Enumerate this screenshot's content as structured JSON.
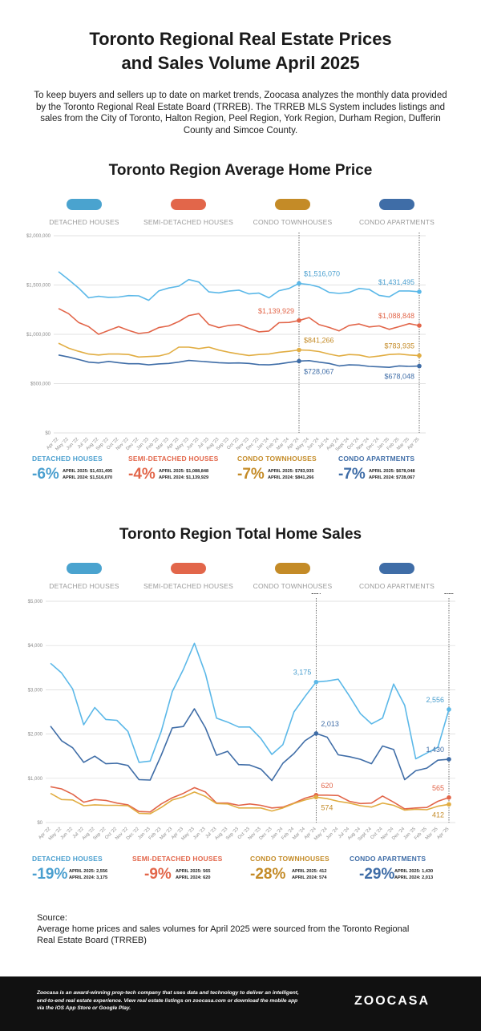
{
  "header": {
    "title_line1": "Toronto Regional Real Estate Prices",
    "title_line2": "and Sales Volume April 2025",
    "intro": "To keep buyers and sellers up to date on market trends, Zoocasa analyzes the monthly data provided by the Toronto Regional Real Estate Board (TRREB). The TRREB MLS System includes listings and sales from the City of Toronto, Halton Region, Peel Region, York Region, Durham Region, Dufferin County and Simcoe County."
  },
  "colors": {
    "detached": "#5bb8e8",
    "semi": "#e2664a",
    "condo_town": "#e1ad42",
    "condo_apt": "#3f6da7",
    "detached_dark": "#4a9fcf",
    "condo_town_dark": "#c48b27",
    "grid": "#d8d8d8",
    "axis_text": "#8c8c8c"
  },
  "legend": [
    {
      "label": "DETACHED HOUSES",
      "color": "#4aa3cf"
    },
    {
      "label": "SEMI-DETACHED HOUSES",
      "color": "#e2664a"
    },
    {
      "label": "CONDO TOWNHOUSES",
      "color": "#c48b27"
    },
    {
      "label": "CONDO APARTMENTS",
      "color": "#3f6da7"
    }
  ],
  "chart_data": [
    {
      "type": "line",
      "title": "Toronto Region Average Home Price",
      "ylim": [
        0,
        2000000
      ],
      "y_ticks": [
        0,
        500000,
        1000000,
        1500000,
        2000000
      ],
      "y_tick_labels": [
        "$0",
        "$500,000",
        "$1,000,000",
        "$1,500,000",
        "$2,000,000"
      ],
      "x": [
        "Apr '22",
        "May '22",
        "Jun '22",
        "Jul '22",
        "Aug '22",
        "Sep '22",
        "Oct '22",
        "Nov '22",
        "Dec '22",
        "Jan '23",
        "Feb '23",
        "Mar '23",
        "Apr '23",
        "May '23",
        "Jun '23",
        "Jul '23",
        "Aug '23",
        "Sep '23",
        "Oct '23",
        "Nov '23",
        "Dec '23",
        "Jan '24",
        "Feb '24",
        "Mar '24",
        "Apr '24",
        "May '24",
        "Jun '24",
        "Jul '24",
        "Aug '24",
        "Sept '24",
        "Oct '24",
        "Nov '24",
        "Dec '24",
        "Jan '25",
        "Feb '25",
        "Mar '25",
        "Apr '25"
      ],
      "markers": [
        {
          "index": 24,
          "label_line1": "APRIL",
          "label_line2": "2024"
        },
        {
          "index": 36,
          "label_line1": "APRIL",
          "label_line2": "2025"
        }
      ],
      "series": [
        {
          "name": "DETACHED HOUSES",
          "key": "detached",
          "values": [
            1635000,
            1555000,
            1470000,
            1370000,
            1385000,
            1375000,
            1378000,
            1393000,
            1390000,
            1345000,
            1440000,
            1470000,
            1488000,
            1555000,
            1530000,
            1430000,
            1420000,
            1438000,
            1448000,
            1410000,
            1418000,
            1370000,
            1442000,
            1465000,
            1516070,
            1505000,
            1480000,
            1425000,
            1415000,
            1425000,
            1465000,
            1455000,
            1395000,
            1380000,
            1440000,
            1440000,
            1431495
          ],
          "annotations": [
            {
              "index": 24,
              "text": "$1,516,070",
              "pos": "right"
            },
            {
              "index": 36,
              "text": "$1,431,495",
              "pos": "left"
            }
          ]
        },
        {
          "name": "SEMI-DETACHED HOUSES",
          "key": "semi",
          "values": [
            1262000,
            1210000,
            1120000,
            1078000,
            1000000,
            1040000,
            1078000,
            1040000,
            1008000,
            1020000,
            1068000,
            1085000,
            1130000,
            1190000,
            1210000,
            1100000,
            1068000,
            1090000,
            1098000,
            1060000,
            1025000,
            1033000,
            1118000,
            1120000,
            1139929,
            1170000,
            1098000,
            1070000,
            1035000,
            1090000,
            1105000,
            1075000,
            1085000,
            1050000,
            1078000,
            1108000,
            1088848
          ],
          "annotations": [
            {
              "index": 24,
              "text": "$1,139,929",
              "pos": "left"
            },
            {
              "index": 36,
              "text": "$1,088,848",
              "pos": "left"
            }
          ]
        },
        {
          "name": "CONDO TOWNHOUSES",
          "key": "condo_town",
          "values": [
            910000,
            860000,
            828000,
            800000,
            790000,
            800000,
            800000,
            795000,
            770000,
            775000,
            780000,
            805000,
            870000,
            870000,
            855000,
            870000,
            840000,
            818000,
            800000,
            785000,
            795000,
            800000,
            818000,
            828000,
            841266,
            838000,
            825000,
            800000,
            780000,
            795000,
            790000,
            768000,
            780000,
            795000,
            800000,
            790000,
            783935
          ],
          "annotations": [
            {
              "index": 24,
              "text": "$841,266",
              "pos": "right"
            },
            {
              "index": 36,
              "text": "$783,935",
              "pos": "left"
            }
          ]
        },
        {
          "name": "CONDO APARTMENTS",
          "key": "condo_apt",
          "values": [
            790000,
            770000,
            745000,
            718000,
            710000,
            725000,
            712000,
            702000,
            702000,
            690000,
            700000,
            705000,
            718000,
            735000,
            728000,
            720000,
            712000,
            708000,
            710000,
            705000,
            693000,
            690000,
            700000,
            715000,
            728067,
            733000,
            718000,
            705000,
            680000,
            690000,
            688000,
            675000,
            670000,
            665000,
            680000,
            675000,
            678048
          ],
          "annotations": [
            {
              "index": 24,
              "text": "$728,067",
              "pos": "below-right"
            },
            {
              "index": 36,
              "text": "$678,048",
              "pos": "below-left"
            }
          ]
        }
      ]
    },
    {
      "type": "line",
      "title": "Toronto Region Total Home Sales",
      "ylim": [
        0,
        5000
      ],
      "y_ticks": [
        0,
        1000,
        2000,
        3000,
        4000,
        5000
      ],
      "y_tick_labels": [
        "$0",
        "$1,000",
        "$2,000",
        "$3,000",
        "$4,000",
        "$5,000"
      ],
      "x": [
        "Apr '22",
        "May '22",
        "Jun '22",
        "Jul '22",
        "Aug '22",
        "Sep '22",
        "Oct '22",
        "Nov '22",
        "Dec '22",
        "Jan '23",
        "Feb '23",
        "Mar '23",
        "Apr '23",
        "May '23",
        "Jun '23",
        "Jul '23",
        "Aug '23",
        "Sep '23",
        "Oct '23",
        "Nov '23",
        "Dec '23",
        "Jan '24",
        "Feb '24",
        "Mar '24",
        "Apr '24",
        "May '24",
        "Jun '24",
        "Jul '24",
        "Aug '24",
        "Sept '24",
        "Oct '24",
        "Nov '24",
        "Dec '24",
        "Jan '25",
        "Feb '25",
        "Mar '25",
        "Apr '25"
      ],
      "markers": [
        {
          "index": 24,
          "label_line1": "APRIL",
          "label_line2": "2024"
        },
        {
          "index": 36,
          "label_line1": "APRIL",
          "label_line2": "2025"
        }
      ],
      "series": [
        {
          "name": "DETACHED HOUSES",
          "key": "detached",
          "values": [
            3600,
            3380,
            3020,
            2210,
            2600,
            2330,
            2310,
            2060,
            1360,
            1390,
            2060,
            2960,
            3460,
            4050,
            3360,
            2360,
            2270,
            2160,
            2160,
            1900,
            1540,
            1760,
            2500,
            2850,
            3175,
            3200,
            3240,
            2860,
            2460,
            2230,
            2360,
            3130,
            2650,
            1440,
            1570,
            1700,
            2556
          ],
          "annotations": [
            {
              "index": 24,
              "text": "3,175",
              "pos": "left"
            },
            {
              "index": 36,
              "text": "2,556",
              "pos": "left"
            }
          ]
        },
        {
          "name": "SEMI-DETACHED HOUSES",
          "key": "semi",
          "values": [
            810,
            760,
            640,
            460,
            520,
            500,
            440,
            400,
            250,
            240,
            420,
            560,
            660,
            790,
            690,
            440,
            440,
            390,
            420,
            390,
            330,
            350,
            440,
            550,
            620,
            620,
            610,
            480,
            430,
            440,
            600,
            460,
            310,
            330,
            340,
            480,
            565
          ],
          "annotations": [
            {
              "index": 24,
              "text": "620",
              "pos": "above-right"
            },
            {
              "index": 36,
              "text": "565",
              "pos": "left"
            }
          ]
        },
        {
          "name": "CONDO TOWNHOUSES",
          "key": "condo_town",
          "values": [
            660,
            520,
            510,
            380,
            400,
            390,
            390,
            380,
            210,
            200,
            340,
            510,
            580,
            690,
            590,
            430,
            420,
            330,
            330,
            330,
            260,
            330,
            430,
            510,
            574,
            540,
            480,
            440,
            380,
            350,
            440,
            390,
            280,
            300,
            290,
            370,
            412
          ],
          "annotations": [
            {
              "index": 24,
              "text": "574",
              "pos": "below-right"
            },
            {
              "index": 36,
              "text": "412",
              "pos": "below-left"
            }
          ]
        },
        {
          "name": "CONDO APARTMENTS",
          "key": "condo_apt",
          "values": [
            2180,
            1850,
            1690,
            1360,
            1500,
            1330,
            1340,
            1290,
            970,
            960,
            1520,
            2140,
            2170,
            2570,
            2140,
            1520,
            1610,
            1310,
            1300,
            1210,
            950,
            1340,
            1560,
            1850,
            2013,
            1930,
            1530,
            1490,
            1430,
            1330,
            1730,
            1650,
            970,
            1170,
            1230,
            1410,
            1430
          ],
          "annotations": [
            {
              "index": 24,
              "text": "2,013",
              "pos": "above-right"
            },
            {
              "index": 36,
              "text": "1,430",
              "pos": "above-left"
            }
          ]
        }
      ]
    }
  ],
  "price_stats": [
    {
      "name": "DETACHED HOUSES",
      "pct": "-6%",
      "line1": "APRIL 2025: $1,431,495",
      "line2": "APRIL 2024: $1,516,070",
      "color": "#4a9fcf"
    },
    {
      "name": "SEMI-DETACHED HOUSES",
      "pct": "-4%",
      "line1": "APRIL 2025: $1,088,848",
      "line2": "APRIL 2024: $1,139,929",
      "color": "#e2664a"
    },
    {
      "name": "CONDO TOWNHOUSES",
      "pct": "-7%",
      "line1": "APRIL 2025: $783,935",
      "line2": "APRIL 2024: $841,266",
      "color": "#c48b27"
    },
    {
      "name": "CONDO APARTMENTS",
      "pct": "-7%",
      "line1": "APRIL 2025: $678,048",
      "line2": "APRIL 2024: $728,067",
      "color": "#3f6da7"
    }
  ],
  "sales_stats": [
    {
      "name": "DETACHED HOUSES",
      "pct": "-19%",
      "line1": "APRIL 2025: 2,556",
      "line2": "APRIL 2024: 3,175",
      "color": "#4a9fcf"
    },
    {
      "name": "SEMI-DETACHED HOUSES",
      "pct": "-9%",
      "line1": "APRIL 2025: 565",
      "line2": "APRIL 2024: 620",
      "color": "#e2664a"
    },
    {
      "name": "CONDO TOWNHOUSES",
      "pct": "-28%",
      "line1": "APRIL 2025: 412",
      "line2": "APRIL 2024: 574",
      "color": "#c48b27"
    },
    {
      "name": "CONDO APARTMENTS",
      "pct": "-29%",
      "line1": "APRIL 2025: 1,430",
      "line2": "APRIL 2024: 2,013",
      "color": "#3f6da7"
    }
  ],
  "source": {
    "heading": "Source:",
    "text": "Average home prices and sales volumes for April 2025 were sourced from the Toronto Regional Real Estate Board (TRREB)"
  },
  "footer": {
    "text": "Zoocasa is an award-winning prop-tech company that uses data and technology to deliver an intelligent, end-to-end real estate experience. View real estate listings on zoocasa.com or download the mobile app via the iOS App Store or Google Play.",
    "logo": "ZOOCASA"
  }
}
